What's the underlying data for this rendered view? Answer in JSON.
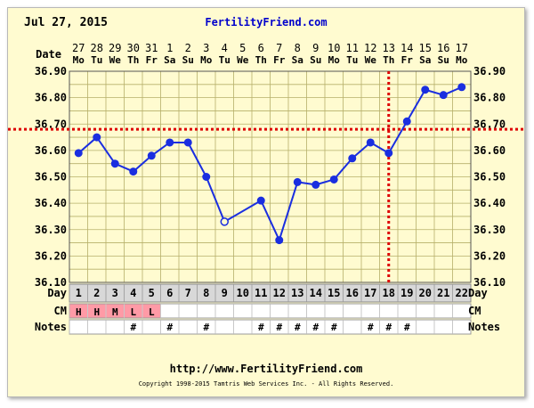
{
  "header": {
    "date": "Jul 27, 2015",
    "site": "FertilityFriend.com"
  },
  "footer": {
    "url": "http://www.FertilityFriend.com",
    "copyright": "Copyright 1998-2015 Tamtris Web Services Inc. - All Rights Reserved."
  },
  "row_labels": {
    "date": "Date",
    "day": "Day",
    "cm": "CM",
    "notes": "Notes"
  },
  "colors": {
    "background": "#fffbd0",
    "grid": "#b6b06a",
    "line": "#1a2ee0",
    "marker_border": "#cc0000",
    "cm_fill": "#ff9aa6",
    "day_row_fill": "#d8d8d8",
    "title_blue": "#0000cc"
  },
  "chart_data": {
    "type": "line",
    "y_unit": "°C",
    "ylim": [
      36.1,
      36.9
    ],
    "yticks": [
      "36.10",
      "36.20",
      "36.30",
      "36.40",
      "36.50",
      "36.60",
      "36.70",
      "36.80",
      "36.90"
    ],
    "dates": [
      {
        "dom": "27",
        "dow": "Mo"
      },
      {
        "dom": "28",
        "dow": "Tu"
      },
      {
        "dom": "29",
        "dow": "We"
      },
      {
        "dom": "30",
        "dow": "Th"
      },
      {
        "dom": "31",
        "dow": "Fr"
      },
      {
        "dom": "1",
        "dow": "Sa"
      },
      {
        "dom": "2",
        "dow": "Su"
      },
      {
        "dom": "3",
        "dow": "Mo"
      },
      {
        "dom": "4",
        "dow": "Tu"
      },
      {
        "dom": "5",
        "dow": "We"
      },
      {
        "dom": "6",
        "dow": "Th"
      },
      {
        "dom": "7",
        "dow": "Fr"
      },
      {
        "dom": "8",
        "dow": "Sa"
      },
      {
        "dom": "9",
        "dow": "Su"
      },
      {
        "dom": "10",
        "dow": "Mo"
      },
      {
        "dom": "11",
        "dow": "Tu"
      },
      {
        "dom": "12",
        "dow": "We"
      },
      {
        "dom": "13",
        "dow": "Th"
      },
      {
        "dom": "14",
        "dow": "Fr"
      },
      {
        "dom": "15",
        "dow": "Sa"
      },
      {
        "dom": "16",
        "dow": "Su"
      },
      {
        "dom": "17",
        "dow": "Mo"
      }
    ],
    "days": [
      "1",
      "2",
      "3",
      "4",
      "5",
      "6",
      "7",
      "8",
      "9",
      "10",
      "11",
      "12",
      "13",
      "14",
      "15",
      "16",
      "17",
      "18",
      "19",
      "20",
      "21",
      "22"
    ],
    "temps": [
      36.59,
      36.65,
      36.55,
      36.52,
      36.58,
      36.63,
      36.63,
      36.5,
      36.33,
      null,
      36.41,
      36.26,
      36.48,
      36.47,
      36.49,
      36.57,
      36.63,
      36.59,
      36.71,
      36.83,
      36.81,
      36.84
    ],
    "open_points": [
      8
    ],
    "dashed_segments": [
      [
        9,
        11
      ]
    ],
    "coverline": 36.68,
    "ovulation_day": 18,
    "cm": [
      "H",
      "H",
      "M",
      "L",
      "L",
      "",
      "",
      "",
      "",
      "",
      "",
      "",
      "",
      "",
      "",
      "",
      "",
      "",
      "",
      "",
      "",
      ""
    ],
    "notes": [
      "",
      "",
      "",
      "#",
      "",
      "#",
      "",
      "#",
      "",
      "",
      "#",
      "#",
      "#",
      "#",
      "#",
      "",
      "#",
      "#",
      "#",
      "",
      "",
      ""
    ],
    "grid": true
  }
}
